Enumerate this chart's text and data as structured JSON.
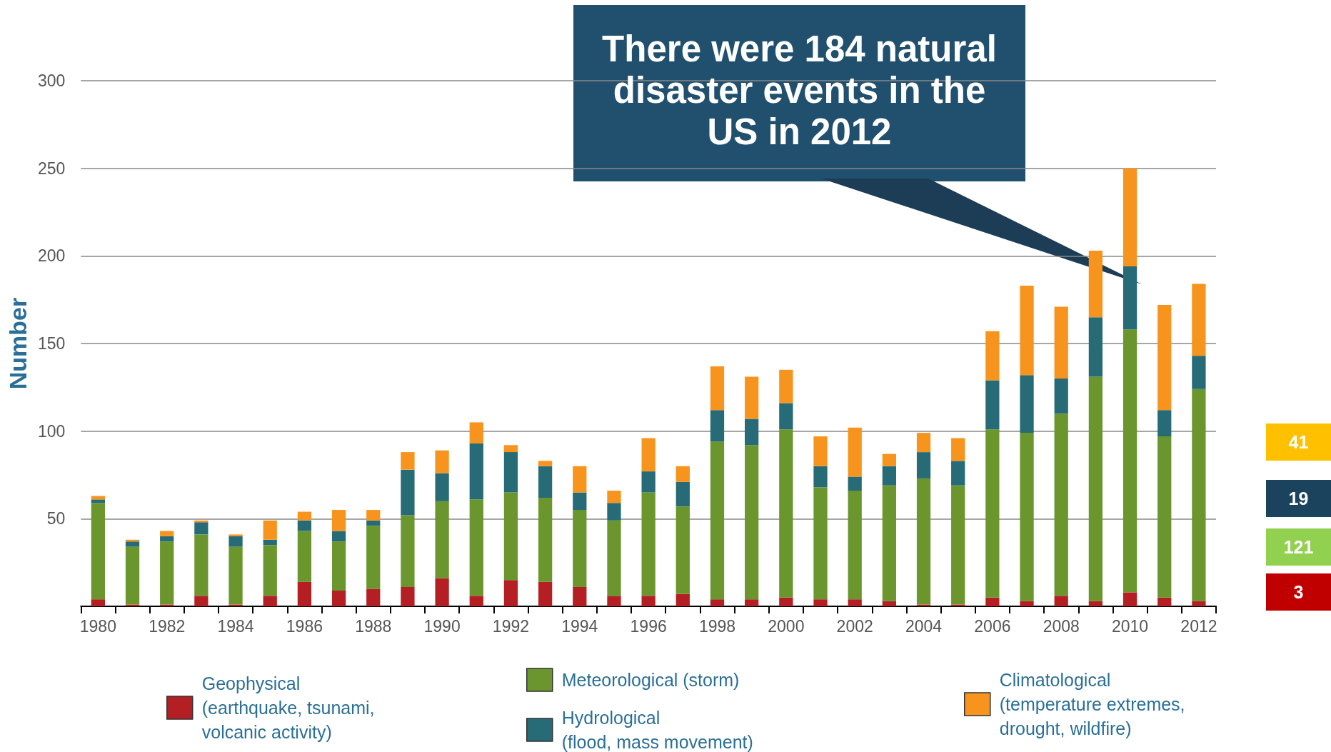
{
  "chart_data": {
    "type": "bar",
    "stacked": true,
    "ylabel": "Number",
    "categories": [
      "1980",
      null,
      "1982",
      null,
      "1984",
      null,
      "1986",
      null,
      "1988",
      null,
      "1990",
      null,
      "1992",
      null,
      "1994",
      null,
      "1996",
      null,
      "1998",
      null,
      "2000",
      null,
      "2002",
      null,
      "2004",
      null,
      "2006",
      null,
      "2008",
      null,
      "2010",
      null,
      "2012"
    ],
    "series": [
      {
        "name": "Geophysical (earthquake, tsunami, volcanic activity)",
        "color": "#b41f24",
        "values": [
          4,
          1,
          1,
          6,
          1,
          6,
          14,
          9,
          10,
          11,
          16,
          6,
          15,
          14,
          11,
          6,
          6,
          7,
          4,
          4,
          5,
          4,
          4,
          3,
          1,
          1,
          5,
          3,
          6,
          3,
          8,
          5,
          3
        ]
      },
      {
        "name": "Meteorological (storm)",
        "color": "#6a962d",
        "values": [
          55,
          33,
          36,
          35,
          33,
          29,
          29,
          28,
          36,
          41,
          44,
          55,
          50,
          48,
          44,
          43,
          59,
          50,
          90,
          88,
          96,
          64,
          62,
          66,
          72,
          68,
          96,
          96,
          104,
          128,
          150,
          92,
          121
        ]
      },
      {
        "name": "Hydrological (flood, mass movement)",
        "color": "#266b75",
        "values": [
          2,
          3,
          3,
          7,
          6,
          3,
          6,
          6,
          3,
          26,
          16,
          32,
          23,
          18,
          10,
          10,
          12,
          14,
          18,
          15,
          15,
          12,
          8,
          11,
          15,
          14,
          28,
          33,
          20,
          34,
          36,
          15,
          19
        ]
      },
      {
        "name": "Climatological (temperature extremes, drought, wildfire)",
        "color": "#f7941d",
        "values": [
          2,
          1,
          3,
          1,
          1,
          11,
          5,
          12,
          6,
          10,
          13,
          12,
          4,
          3,
          15,
          7,
          19,
          9,
          25,
          24,
          19,
          17,
          28,
          7,
          11,
          13,
          28,
          51,
          41,
          38,
          56,
          60,
          41
        ]
      }
    ],
    "ylim": [
      0,
      300
    ],
    "yticks": [
      50,
      100,
      150,
      200,
      250,
      300
    ],
    "grid": "y",
    "legend": "bottom",
    "annotations": [
      "There were 184 natural disaster events in the US in 2012",
      "41",
      "19",
      "121",
      "3"
    ]
  }
}
